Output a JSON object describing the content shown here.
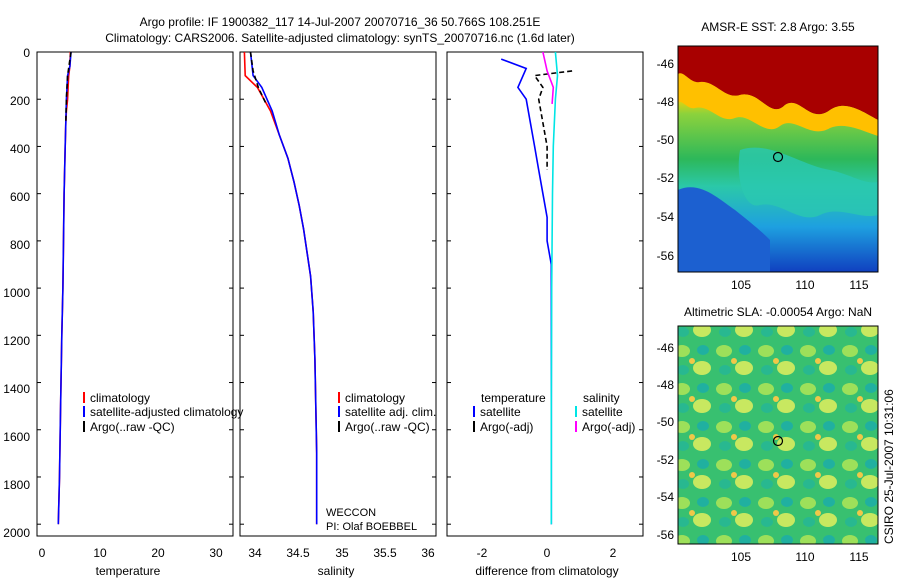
{
  "title_line1": "Argo profile: IF 1900382_117 14-Jul-2007 20070716_36 50.766S 108.251E",
  "title_line2": "Climatology: CARS2006. Satellite-adjusted climatology: synTS_20070716.nc (1.6d later)",
  "side_label": "CSIRO 25-Jul-2007 10:31:06",
  "colors": {
    "red": "#ff0000",
    "blue": "#0000ff",
    "black": "#000000",
    "cyan": "#00e5e5",
    "magenta": "#ff00ff"
  },
  "depth_ticks": [
    "0",
    "200",
    "400",
    "600",
    "800",
    "1000",
    "1200",
    "1400",
    "1600",
    "1800",
    "2000"
  ],
  "panels": [
    {
      "xlabel": "temperature",
      "xticks": [
        "0",
        "10",
        "20",
        "30"
      ],
      "legend": [
        "climatology",
        "satellite-adjusted climatology",
        "Argo(..raw -QC)"
      ]
    },
    {
      "xlabel": "salinity",
      "xticks": [
        "34",
        "34.5",
        "35",
        "35.5",
        "36"
      ],
      "legend": [
        "climatology",
        "satellite adj. clim.",
        "Argo(..raw -QC)"
      ],
      "annotation": [
        "WECCON",
        "PI: Olaf BOEBBEL"
      ]
    },
    {
      "xlabel": "difference from climatology",
      "xticks": [
        "-2",
        "0",
        "2"
      ],
      "legend_headers": [
        "temperature",
        "salinity"
      ],
      "legend_left": [
        "satellite",
        "Argo(-adj)"
      ],
      "legend_right": [
        "satellite",
        "Argo(-adj)"
      ]
    }
  ],
  "maps": [
    {
      "title": "AMSR-E SST: 2.8 Argo: 3.55",
      "yticks": [
        "-46",
        "-48",
        "-50",
        "-52",
        "-54",
        "-56"
      ],
      "xticks": [
        "105",
        "110",
        "115"
      ]
    },
    {
      "title": "Altimetric SLA: -0.00054 Argo: NaN",
      "yticks": [
        "-46",
        "-48",
        "-50",
        "-52",
        "-54",
        "-56"
      ],
      "xticks": [
        "105",
        "110",
        "115"
      ]
    }
  ],
  "chart_data": [
    {
      "type": "line",
      "xlabel": "temperature",
      "ylabel": "",
      "xlim": [
        -2,
        32
      ],
      "ylim": [
        2050,
        0
      ],
      "series": [
        {
          "name": "climatology",
          "color": "red",
          "points": [
            [
              3.8,
              0
            ],
            [
              3.7,
              60
            ],
            [
              3.5,
              100
            ],
            [
              3.4,
              150
            ],
            [
              3.3,
              200
            ],
            [
              3.1,
              250
            ],
            [
              3.0,
              300
            ],
            [
              2.9,
              400
            ],
            [
              2.7,
              600
            ],
            [
              2.6,
              800
            ],
            [
              2.5,
              1000
            ],
            [
              2.3,
              1200
            ],
            [
              2.1,
              1500
            ],
            [
              1.9,
              1800
            ],
            [
              1.7,
              2000
            ]
          ]
        },
        {
          "name": "satellite-adjusted climatology",
          "color": "blue",
          "points": [
            [
              3.9,
              0
            ],
            [
              3.7,
              60
            ],
            [
              3.3,
              100
            ],
            [
              3.2,
              150
            ],
            [
              3.1,
              200
            ],
            [
              3.0,
              300
            ],
            [
              2.9,
              400
            ],
            [
              2.7,
              600
            ],
            [
              2.6,
              800
            ],
            [
              2.5,
              1000
            ],
            [
              2.3,
              1200
            ],
            [
              2.1,
              1500
            ],
            [
              1.9,
              1800
            ],
            [
              1.7,
              2000
            ]
          ]
        },
        {
          "name": "Argo(..raw -QC)",
          "color": "black",
          "points": [
            [
              3.9,
              0
            ],
            [
              3.6,
              50
            ],
            [
              3.3,
              100
            ],
            [
              3.1,
              200
            ],
            [
              3.0,
              300
            ]
          ]
        }
      ]
    },
    {
      "type": "line",
      "xlabel": "salinity",
      "ylabel": "",
      "xlim": [
        33.85,
        36.1
      ],
      "ylim": [
        2050,
        0
      ],
      "series": [
        {
          "name": "climatology",
          "color": "red",
          "points": [
            [
              33.9,
              0
            ],
            [
              33.91,
              100
            ],
            [
              34.05,
              150
            ],
            [
              34.2,
              250
            ],
            [
              34.3,
              350
            ],
            [
              34.4,
              450
            ],
            [
              34.47,
              550
            ],
            [
              34.53,
              650
            ],
            [
              34.58,
              750
            ],
            [
              34.62,
              850
            ],
            [
              34.66,
              950
            ],
            [
              34.69,
              1100
            ],
            [
              34.71,
              1300
            ],
            [
              34.72,
              1500
            ],
            [
              34.73,
              1700
            ],
            [
              34.73,
              2000
            ]
          ]
        },
        {
          "name": "satellite adj. clim.",
          "color": "blue",
          "points": [
            [
              33.97,
              0
            ],
            [
              34.0,
              100
            ],
            [
              34.1,
              150
            ],
            [
              34.22,
              250
            ],
            [
              34.3,
              350
            ],
            [
              34.4,
              450
            ],
            [
              34.47,
              550
            ],
            [
              34.53,
              650
            ],
            [
              34.58,
              750
            ],
            [
              34.62,
              850
            ],
            [
              34.66,
              950
            ],
            [
              34.69,
              1100
            ],
            [
              34.71,
              1300
            ],
            [
              34.72,
              1500
            ],
            [
              34.73,
              1700
            ],
            [
              34.73,
              2000
            ]
          ]
        },
        {
          "name": "Argo(..raw -QC)",
          "color": "black",
          "points": [
            [
              33.97,
              0
            ],
            [
              34.0,
              80
            ],
            [
              34.06,
              150
            ],
            [
              34.15,
              220
            ]
          ]
        }
      ]
    },
    {
      "type": "line",
      "xlabel": "difference from climatology",
      "ylabel": "",
      "xlim": [
        -2.5,
        2.2
      ],
      "ylim": [
        2050,
        0
      ],
      "series": [
        {
          "name": "temperature satellite",
          "color": "blue",
          "points": [
            [
              -1.2,
              30
            ],
            [
              -0.6,
              70
            ],
            [
              -0.8,
              150
            ],
            [
              -0.6,
              200
            ],
            [
              -0.5,
              300
            ],
            [
              -0.4,
              400
            ],
            [
              -0.3,
              500
            ],
            [
              -0.2,
              600
            ],
            [
              -0.1,
              700
            ],
            [
              -0.1,
              800
            ],
            [
              0,
              900
            ],
            [
              0,
              1000
            ],
            [
              0,
              1500
            ],
            [
              0,
              2000
            ]
          ]
        },
        {
          "name": "temperature Argo(-adj)",
          "color": "black",
          "points": [
            [
              0.5,
              80
            ],
            [
              -0.4,
              100
            ],
            [
              -0.2,
              150
            ],
            [
              -0.3,
              200
            ],
            [
              -0.2,
              300
            ],
            [
              -0.1,
              400
            ],
            [
              -0.1,
              500
            ]
          ]
        },
        {
          "name": "salinity satellite",
          "color": "cyan",
          "points": [
            [
              0.1,
              0
            ],
            [
              0.15,
              100
            ],
            [
              0.1,
              200
            ],
            [
              0.05,
              400
            ],
            [
              0.03,
              600
            ],
            [
              0.02,
              800
            ],
            [
              0.01,
              1000
            ],
            [
              0,
              1500
            ],
            [
              0,
              2000
            ]
          ]
        },
        {
          "name": "salinity Argo(-adj)",
          "color": "magenta",
          "points": [
            [
              -0.2,
              0
            ],
            [
              -0.1,
              80
            ],
            [
              0.05,
              150
            ],
            [
              0.02,
              220
            ]
          ]
        }
      ]
    }
  ]
}
